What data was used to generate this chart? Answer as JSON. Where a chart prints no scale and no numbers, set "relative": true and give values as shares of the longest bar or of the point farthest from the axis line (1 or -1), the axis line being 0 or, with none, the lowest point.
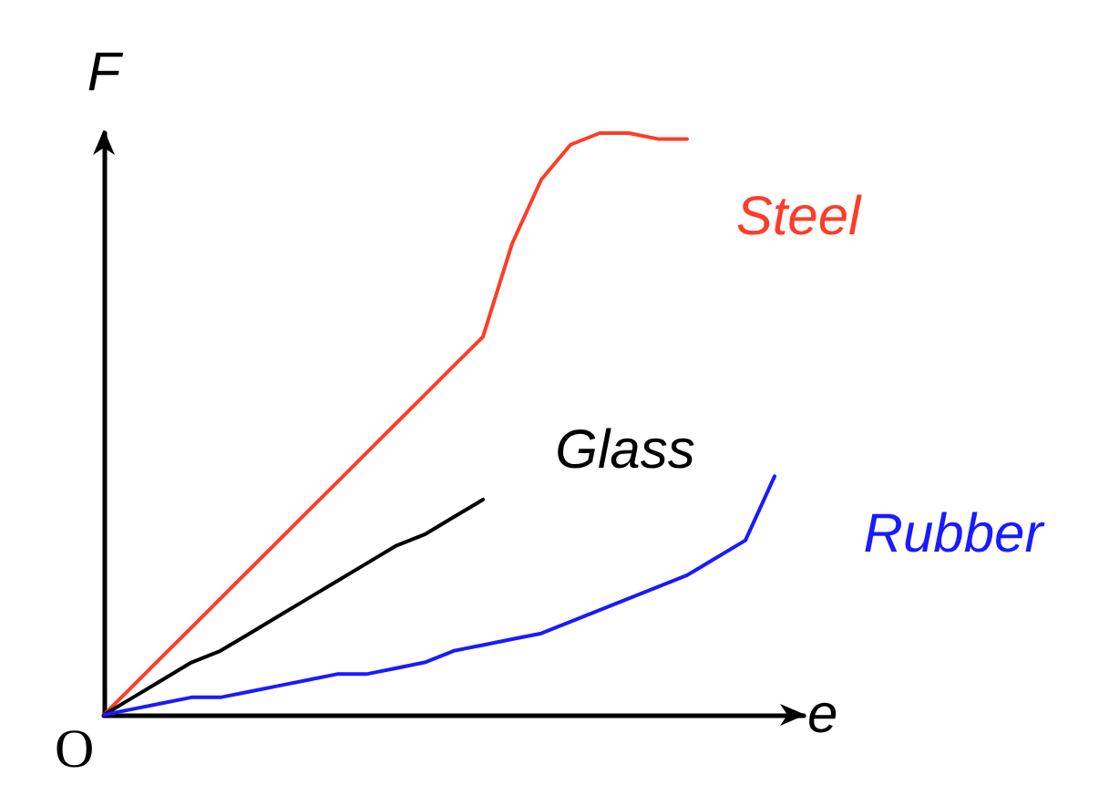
{
  "chart_data": {
    "type": "line",
    "relative": true,
    "xlabel": "e",
    "ylabel": "F",
    "annotations": [
      "O"
    ],
    "grid": false,
    "legend": false,
    "marker": "none",
    "line_style": "solid",
    "categories": [
      null,
      null,
      null,
      null,
      null,
      null,
      null,
      null,
      null,
      null,
      null,
      null,
      null,
      null,
      null,
      null,
      null,
      null,
      null,
      null,
      null,
      null,
      null,
      null,
      null
    ],
    "series": [
      {
        "name": "Steel",
        "color": "#ff3b2a",
        "values": [
          0,
          0.05,
          0.1,
          0.15,
          0.2,
          0.25,
          0.3,
          0.35,
          0.4,
          0.45,
          0.5,
          0.55,
          0.6,
          0.65,
          0.81,
          0.92,
          0.98,
          1,
          1,
          0.99,
          0.99,
          null,
          null,
          null,
          null
        ]
      },
      {
        "name": "Glass",
        "color": "#000000",
        "values": [
          0,
          0.03,
          0.06,
          0.09,
          0.11,
          0.14,
          0.17,
          0.2,
          0.23,
          0.26,
          0.29,
          0.31,
          0.34,
          0.37,
          null,
          null,
          null,
          null,
          null,
          null,
          null,
          null,
          null,
          null,
          null
        ]
      },
      {
        "name": "Rubber",
        "color": "#1a1aff",
        "values": [
          0,
          0.01,
          0.02,
          0.03,
          0.03,
          0.04,
          0.05,
          0.06,
          0.07,
          0.07,
          0.08,
          0.09,
          0.11,
          0.12,
          0.13,
          0.14,
          0.16,
          0.18,
          0.2,
          0.22,
          0.24,
          0.27,
          0.3,
          0.41,
          null
        ]
      }
    ]
  }
}
